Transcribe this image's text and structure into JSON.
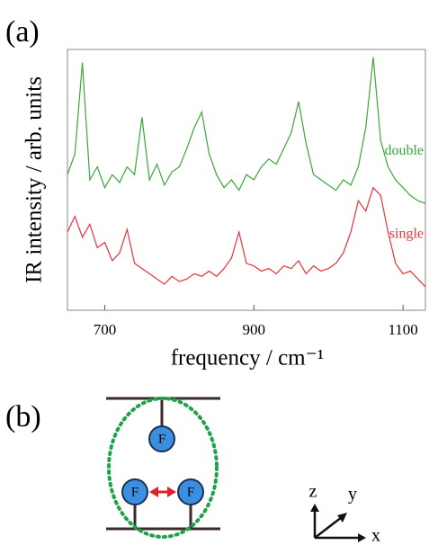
{
  "chart_data": {
    "type": "line",
    "panel_label": "(a)",
    "xlabel": "frequency / cm⁻¹",
    "ylabel": "IR intensity / arb. units",
    "x": [
      650,
      660,
      670,
      680,
      690,
      700,
      710,
      720,
      730,
      740,
      750,
      760,
      770,
      780,
      790,
      800,
      810,
      820,
      830,
      840,
      850,
      860,
      870,
      880,
      890,
      900,
      910,
      920,
      930,
      940,
      950,
      960,
      970,
      980,
      990,
      1000,
      1010,
      1020,
      1030,
      1040,
      1050,
      1060,
      1070,
      1080,
      1090,
      1100,
      1110,
      1120,
      1130
    ],
    "series": [
      {
        "name": "double",
        "color": "#3aa83a",
        "values": [
          0.52,
          0.6,
          0.95,
          0.5,
          0.55,
          0.47,
          0.52,
          0.49,
          0.55,
          0.52,
          0.74,
          0.5,
          0.56,
          0.48,
          0.53,
          0.55,
          0.62,
          0.7,
          0.76,
          0.6,
          0.52,
          0.47,
          0.5,
          0.46,
          0.52,
          0.5,
          0.55,
          0.58,
          0.56,
          0.62,
          0.68,
          0.8,
          0.64,
          0.52,
          0.5,
          0.48,
          0.46,
          0.5,
          0.48,
          0.55,
          0.7,
          0.97,
          0.65,
          0.55,
          0.5,
          0.47,
          0.44,
          0.42,
          0.41
        ]
      },
      {
        "name": "single",
        "color": "#e8333a",
        "values": [
          0.3,
          0.36,
          0.28,
          0.33,
          0.24,
          0.26,
          0.19,
          0.22,
          0.31,
          0.18,
          0.16,
          0.14,
          0.12,
          0.1,
          0.13,
          0.11,
          0.12,
          0.14,
          0.13,
          0.15,
          0.13,
          0.16,
          0.2,
          0.3,
          0.18,
          0.17,
          0.15,
          0.16,
          0.14,
          0.17,
          0.16,
          0.19,
          0.14,
          0.17,
          0.15,
          0.16,
          0.18,
          0.22,
          0.3,
          0.42,
          0.38,
          0.47,
          0.44,
          0.3,
          0.18,
          0.14,
          0.15,
          0.12,
          0.09
        ]
      }
    ],
    "xlim": [
      650,
      1130
    ],
    "xticks": [
      700,
      900,
      1100
    ],
    "ylim": [
      0,
      1
    ]
  },
  "diagram": {
    "panel_label": "(b)",
    "atoms": [
      "F",
      "F",
      "F"
    ],
    "axes": [
      "z",
      "y",
      "x"
    ]
  }
}
